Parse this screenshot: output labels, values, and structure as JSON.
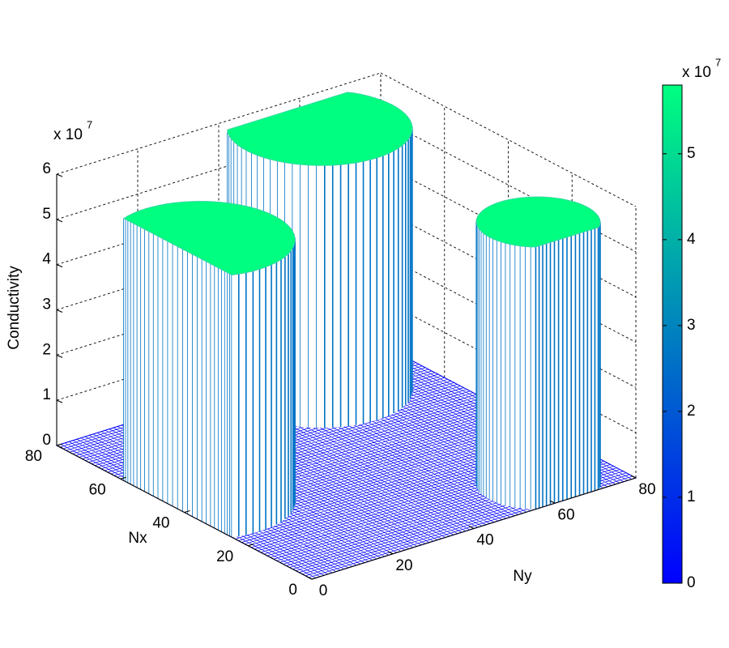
{
  "chart_data": {
    "type": "mesh3d",
    "nx_label": "Nx",
    "ny_label": "Ny",
    "z_label": "Conductivity",
    "nx_lim": [
      0,
      80
    ],
    "nx_ticks": [
      0,
      20,
      40,
      60,
      80
    ],
    "ny_lim": [
      0,
      80
    ],
    "ny_ticks": [
      0,
      20,
      40,
      60,
      80
    ],
    "zlim": [
      0,
      6
    ],
    "zticks": [
      0,
      1,
      2,
      3,
      4,
      5,
      6
    ],
    "z_exponent": {
      "base": "x 10",
      "power": "7"
    },
    "colormap": "winter",
    "clim": [
      0,
      5.8
    ],
    "colorbar_ticks": [
      0,
      1,
      2,
      3,
      4,
      5
    ],
    "colorbar_exponent": {
      "base": "x 10",
      "power": "7"
    },
    "grid": true,
    "floor_value": 0,
    "mesh_step": 1,
    "cylinders": [
      {
        "nx": 42,
        "ny": 6,
        "radius": 18,
        "value": 5.8
      },
      {
        "nx": 70,
        "ny": 57,
        "radius": 18,
        "value": 5.8
      },
      {
        "nx": 9,
        "ny": 63,
        "radius": 12,
        "value": 5.8
      }
    ]
  }
}
